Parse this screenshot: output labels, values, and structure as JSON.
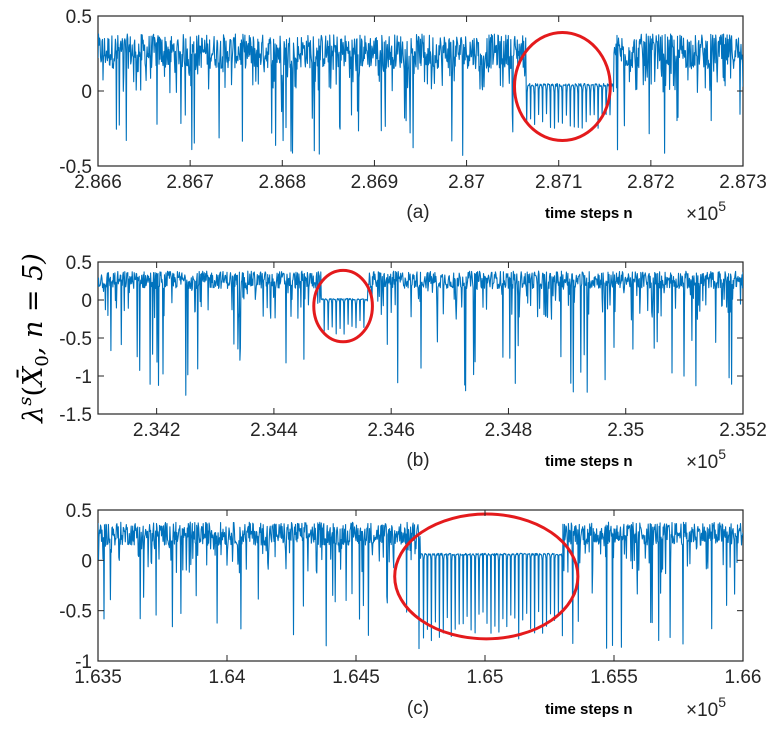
{
  "ylabel": "λ^s(X̄_0, n = 5)",
  "ylabel_parts": {
    "lambda": "λ",
    "sup": "s",
    "open": "(",
    "xbar": "X̄",
    "sub": "0",
    "rest": ", n = 5)"
  },
  "colors": {
    "series": "#0072BD",
    "highlight": "#e41a1c",
    "axis": "#262626"
  },
  "chart_data": [
    {
      "type": "line",
      "panel_label": "(a)",
      "xlabel": "time steps n",
      "x_multiplier": "×10",
      "x_multiplier_exp": "5",
      "xlim": [
        286600,
        287300
      ],
      "ylim": [
        -0.5,
        0.5
      ],
      "xticks": [
        2.866,
        2.867,
        2.868,
        2.869,
        2.87,
        2.871,
        2.872,
        2.873
      ],
      "xtick_labels": [
        "2.866",
        "2.867",
        "2.868",
        "2.869",
        "2.87",
        "2.871",
        "2.872",
        "2.873"
      ],
      "yticks": [
        -0.5,
        0,
        0.5
      ],
      "ytick_labels": [
        "-0.5",
        "0",
        "0.5"
      ],
      "series": [
        {
          "chaotic_band": [
            0.15,
            0.38
          ],
          "laminar_window": [
            287065,
            287160
          ],
          "laminar_level": 0.05,
          "laminar_dip": -0.25
        }
      ],
      "highlight": {
        "center": [
          287104,
          0.03
        ],
        "rx": 52,
        "ry": 0.36
      }
    },
    {
      "type": "line",
      "panel_label": "(b)",
      "xlabel": "time steps n",
      "x_multiplier": "×10",
      "x_multiplier_exp": "5",
      "xlim": [
        234100,
        235200
      ],
      "ylim": [
        -1.5,
        0.5
      ],
      "xticks": [
        2.342,
        2.344,
        2.346,
        2.348,
        2.35,
        2.352
      ],
      "xtick_labels": [
        "2.342",
        "2.344",
        "2.346",
        "2.348",
        "2.35",
        "2.352"
      ],
      "yticks": [
        -1.5,
        -1,
        -0.5,
        0,
        0.5
      ],
      "ytick_labels": [
        "-1.5",
        "-1",
        "-0.5",
        "0",
        "0.5"
      ],
      "series": [
        {
          "chaotic_band": [
            0.15,
            0.38
          ],
          "laminar_window": [
            234480,
            234560
          ],
          "laminar_level": 0.02,
          "laminar_dip": -0.45
        }
      ],
      "highlight": {
        "center": [
          234518,
          -0.08
        ],
        "rx": 50,
        "ry": 0.47
      }
    },
    {
      "type": "line",
      "panel_label": "(c)",
      "xlabel": "time steps n",
      "x_multiplier": "×10",
      "x_multiplier_exp": "5",
      "xlim": [
        163500,
        166000
      ],
      "ylim": [
        -1,
        0.5
      ],
      "xticks": [
        1.635,
        1.64,
        1.645,
        1.65,
        1.655,
        1.66
      ],
      "xtick_labels": [
        "1.635",
        "1.64",
        "1.645",
        "1.65",
        "1.655",
        "1.66"
      ],
      "yticks": [
        -1,
        -0.5,
        0,
        0.5
      ],
      "ytick_labels": [
        "-1",
        "-0.5",
        "0",
        "0.5"
      ],
      "series": [
        {
          "chaotic_band": [
            0.15,
            0.38
          ],
          "laminar_window": [
            164750,
            165300
          ],
          "laminar_level": 0.07,
          "laminar_dip": -0.8
        }
      ],
      "highlight": {
        "center": [
          165005,
          -0.16
        ],
        "rx": 355,
        "ry": 0.62
      }
    }
  ]
}
